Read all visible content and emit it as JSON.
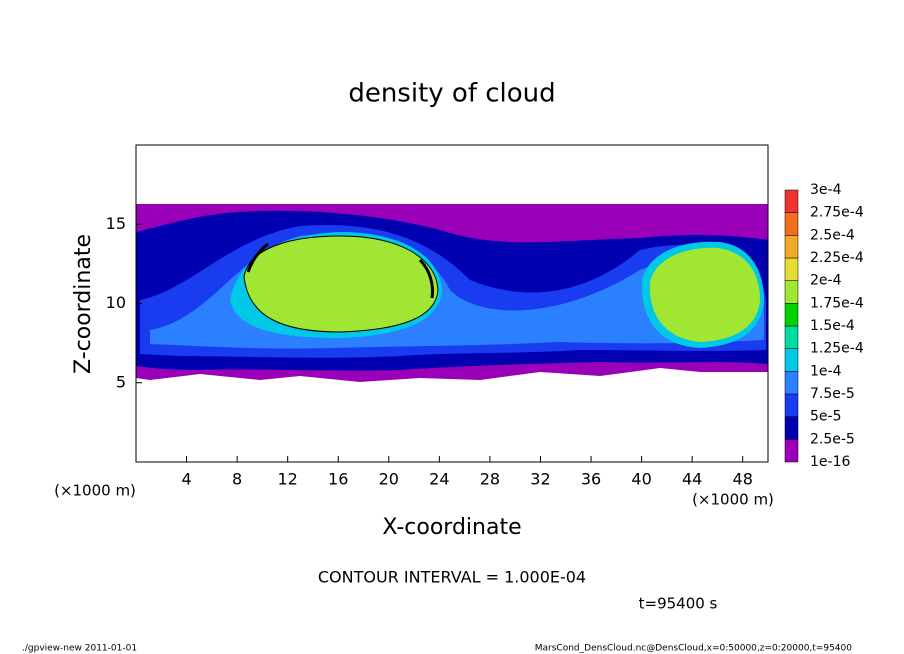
{
  "chart_data": {
    "type": "contour",
    "title": "density of cloud",
    "x_label": "X-coordinate",
    "y_label": "Z-coordinate",
    "x_unit": "(×1000 m)",
    "x_unit_right": "(×1000 m)",
    "contour_interval": "CONTOUR INTERVAL = 1.000E-04",
    "time": "t=95400 s",
    "xlim": [
      0,
      50
    ],
    "xticks": [
      4,
      8,
      12,
      16,
      20,
      24,
      28,
      32,
      36,
      40,
      44,
      48
    ],
    "ylim": [
      0,
      20
    ],
    "yticks": [
      5,
      10,
      15
    ],
    "colorbar": {
      "levels": [
        1e-16,
        {
          "value": 2.5e-05,
          "label": "2.5e-5"
        },
        {
          "value": 5e-05,
          "label": "5e-5"
        },
        {
          "value": 7.5e-05,
          "label": "7.5e-5"
        },
        {
          "value": 0.0001,
          "label": "1e-4"
        },
        {
          "value": 0.000125,
          "label": "1.25e-4"
        },
        {
          "value": 0.00015,
          "label": "1.5e-4"
        },
        {
          "value": 0.000175,
          "label": "1.75e-4"
        },
        {
          "value": 0.0002,
          "label": "2e-4"
        },
        {
          "value": 0.000225,
          "label": "2.25e-4"
        },
        {
          "value": 0.00025,
          "label": "2.5e-4"
        },
        {
          "value": 0.000275,
          "label": "2.75e-4"
        },
        {
          "value": 0.0003,
          "label": "3e-4"
        }
      ],
      "colors": [
        "#9a00b8",
        "#0000b0",
        "#1a3cf0",
        "#2a80ff",
        "#00c8e6",
        "#00dca0",
        "#00d200",
        "#a0e632",
        "#e6dc32",
        "#f0aa28",
        "#f06e1e",
        "#f03232",
        "#f09a9a"
      ]
    },
    "footer_left": "./gpview-new  2011-01-01",
    "footer_right": "MarsCond_DensCloud.nc@DensCloud,x=0:50000,z=0:20000,t=95400"
  }
}
